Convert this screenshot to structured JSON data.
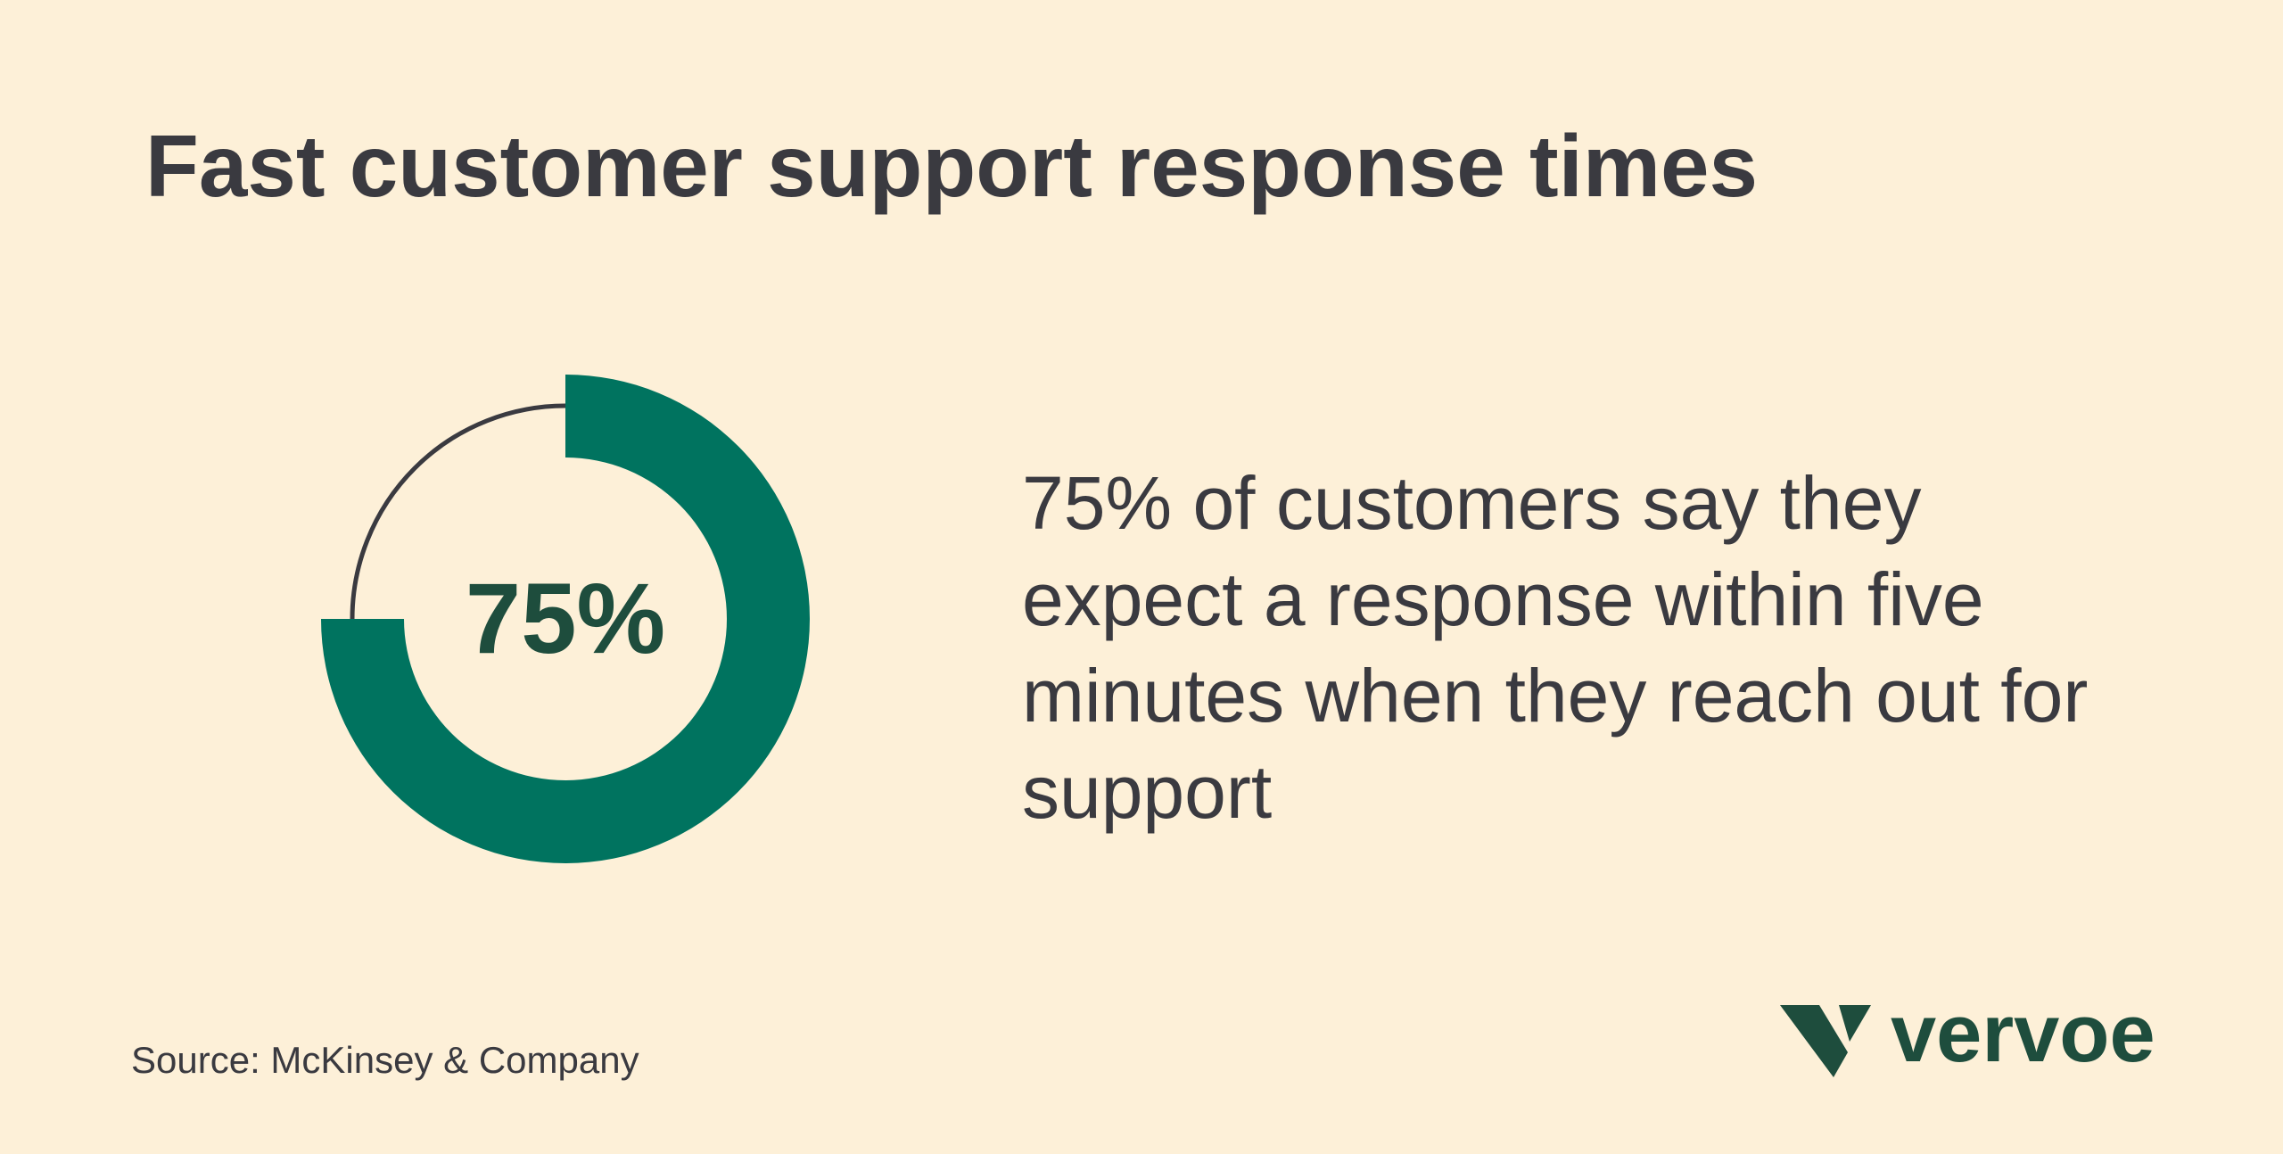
{
  "chart_data": {
    "type": "donut",
    "title": "Fast customer support response times",
    "values": [
      75
    ],
    "value_labels": [
      "75%"
    ],
    "color": "#00735f",
    "description": "75% of customers say they expect a response within five minutes when they reach out for support",
    "source": "Source: McKinsey & Company"
  },
  "logo": "vervoe"
}
